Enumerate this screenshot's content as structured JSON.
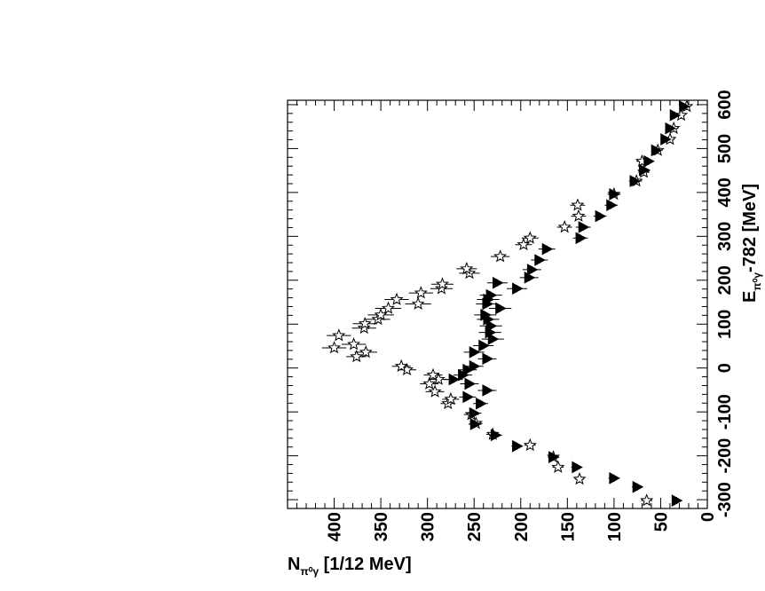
{
  "chart_data": {
    "type": "scatter",
    "energy_axis": {
      "label_main": "E",
      "label_sub": "π⁰γ",
      "label_rest": "-782 [MeV]",
      "range": [
        -320,
        610
      ],
      "ticks": [
        "-300",
        "-200",
        "-100",
        "0",
        "100",
        "200",
        "300",
        "400",
        "500",
        "600"
      ]
    },
    "count_axis": {
      "label_main": "N",
      "label_sub": "π⁰γ",
      "label_rest": " [1/12 MeV]",
      "range": [
        0,
        450
      ],
      "ticks": [
        "0",
        "50",
        "100",
        "150",
        "200",
        "250",
        "300",
        "350",
        "400"
      ]
    },
    "grid": false,
    "legend": "none",
    "series": [
      {
        "marker": "open-star",
        "points": [
          [
            -302,
            65,
            6
          ],
          [
            -253,
            137,
            5
          ],
          [
            -226,
            160,
            6
          ],
          [
            -203,
            165,
            6
          ],
          [
            -176,
            190,
            6
          ],
          [
            -151,
            230,
            7
          ],
          [
            -126,
            248,
            7
          ],
          [
            -106,
            253,
            8
          ],
          [
            -81,
            278,
            8
          ],
          [
            -71,
            275,
            9
          ],
          [
            -54,
            292,
            10
          ],
          [
            -36,
            298,
            10
          ],
          [
            -26,
            288,
            10
          ],
          [
            -16,
            294,
            10
          ],
          [
            -4,
            322,
            10
          ],
          [
            4,
            328,
            10
          ],
          [
            26,
            376,
            11
          ],
          [
            36,
            366,
            12
          ],
          [
            46,
            400,
            13
          ],
          [
            54,
            379,
            13
          ],
          [
            74,
            395,
            13
          ],
          [
            91,
            368,
            13
          ],
          [
            101,
            367,
            13
          ],
          [
            111,
            353,
            13
          ],
          [
            121,
            350,
            14
          ],
          [
            136,
            342,
            14
          ],
          [
            146,
            310,
            14
          ],
          [
            156,
            333,
            13
          ],
          [
            171,
            307,
            13
          ],
          [
            181,
            285,
            12
          ],
          [
            191,
            284,
            12
          ],
          [
            216,
            255,
            11
          ],
          [
            226,
            258,
            11
          ],
          [
            254,
            222,
            10
          ],
          [
            281,
            197,
            9
          ],
          [
            296,
            190,
            9
          ],
          [
            321,
            153,
            8
          ],
          [
            346,
            138,
            8
          ],
          [
            371,
            139,
            8
          ],
          [
            396,
            100,
            7
          ],
          [
            426,
            76,
            6
          ],
          [
            446,
            68,
            6
          ],
          [
            471,
            70,
            6
          ],
          [
            496,
            53,
            5
          ],
          [
            521,
            40,
            5
          ],
          [
            546,
            36,
            5
          ],
          [
            576,
            28,
            4
          ],
          [
            596,
            22,
            4
          ]
        ]
      },
      {
        "marker": "filled-triangle",
        "points": [
          [
            -302,
            33,
            5
          ],
          [
            -271,
            75,
            6
          ],
          [
            -251,
            100,
            6
          ],
          [
            -226,
            140,
            6
          ],
          [
            -203,
            165,
            6
          ],
          [
            -178,
            204,
            6
          ],
          [
            -153,
            227,
            7
          ],
          [
            -128,
            249,
            7
          ],
          [
            -103,
            250,
            8
          ],
          [
            -81,
            243,
            8
          ],
          [
            -66,
            257,
            9
          ],
          [
            -51,
            236,
            10
          ],
          [
            -36,
            255,
            10
          ],
          [
            -26,
            272,
            10
          ],
          [
            -16,
            262,
            10
          ],
          [
            -4,
            257,
            10
          ],
          [
            4,
            250,
            10
          ],
          [
            21,
            236,
            10
          ],
          [
            36,
            250,
            11
          ],
          [
            51,
            240,
            11
          ],
          [
            66,
            230,
            12
          ],
          [
            81,
            233,
            12
          ],
          [
            96,
            232,
            12
          ],
          [
            111,
            235,
            12
          ],
          [
            121,
            238,
            12
          ],
          [
            136,
            222,
            12
          ],
          [
            146,
            236,
            12
          ],
          [
            156,
            235,
            12
          ],
          [
            166,
            232,
            12
          ],
          [
            181,
            204,
            11
          ],
          [
            194,
            225,
            11
          ],
          [
            206,
            191,
            10
          ],
          [
            224,
            188,
            10
          ],
          [
            246,
            180,
            9
          ],
          [
            271,
            172,
            9
          ],
          [
            296,
            136,
            8
          ],
          [
            321,
            133,
            8
          ],
          [
            346,
            115,
            7
          ],
          [
            371,
            103,
            7
          ],
          [
            396,
            100,
            6
          ],
          [
            426,
            78,
            6
          ],
          [
            451,
            68,
            6
          ],
          [
            471,
            63,
            5
          ],
          [
            496,
            55,
            5
          ],
          [
            521,
            45,
            5
          ],
          [
            546,
            40,
            4
          ],
          [
            576,
            35,
            4
          ],
          [
            596,
            25,
            4
          ]
        ]
      }
    ]
  }
}
